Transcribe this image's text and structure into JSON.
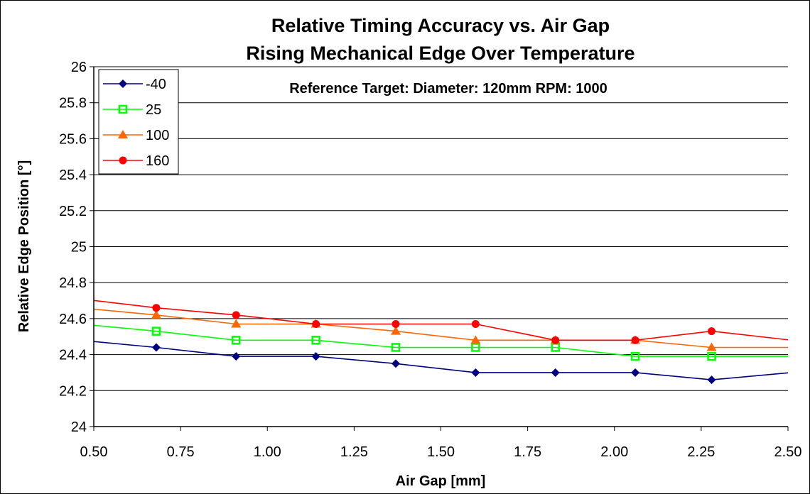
{
  "chart_data": {
    "type": "line",
    "title": "Relative Timing Accuracy vs. Air Gap",
    "subtitle": "Rising Mechanical Edge Over Temperature",
    "xlabel": "Air Gap [mm]",
    "ylabel": "Relative Edge Position [°]",
    "annotation": "Reference Target:  Diameter: 120mm RPM: 1000",
    "xlim": [
      0.5,
      2.5
    ],
    "ylim": [
      24,
      26
    ],
    "x_ticks": [
      "0.50",
      "0.75",
      "1.00",
      "1.25",
      "1.50",
      "1.75",
      "2.00",
      "2.25",
      "2.50"
    ],
    "y_ticks": [
      "24",
      "24.2",
      "24.4",
      "24.6",
      "24.8",
      "25",
      "25.2",
      "25.4",
      "25.6",
      "25.8",
      "26"
    ],
    "grid": "horizontal",
    "legend": "top-left",
    "x": [
      0.46,
      0.68,
      0.91,
      1.14,
      1.37,
      1.6,
      1.83,
      2.06,
      2.28,
      2.51
    ],
    "series": [
      {
        "name": "-40",
        "color": "#000080",
        "marker": "diamond",
        "values": [
          24.48,
          24.44,
          24.39,
          24.39,
          24.35,
          24.3,
          24.3,
          24.3,
          24.26,
          24.3
        ]
      },
      {
        "name": "25",
        "color": "#00ff00",
        "marker": "square",
        "values": [
          24.57,
          24.53,
          24.48,
          24.48,
          24.44,
          24.44,
          24.44,
          24.39,
          24.39,
          24.39
        ]
      },
      {
        "name": "100",
        "color": "#ff6600",
        "marker": "triangle",
        "values": [
          24.66,
          24.62,
          24.57,
          24.57,
          24.53,
          24.48,
          24.48,
          24.48,
          24.44,
          24.44
        ]
      },
      {
        "name": "160",
        "color": "#ff0000",
        "marker": "circle",
        "values": [
          24.71,
          24.66,
          24.62,
          24.57,
          24.57,
          24.57,
          24.48,
          24.48,
          24.53,
          24.48
        ]
      }
    ]
  }
}
